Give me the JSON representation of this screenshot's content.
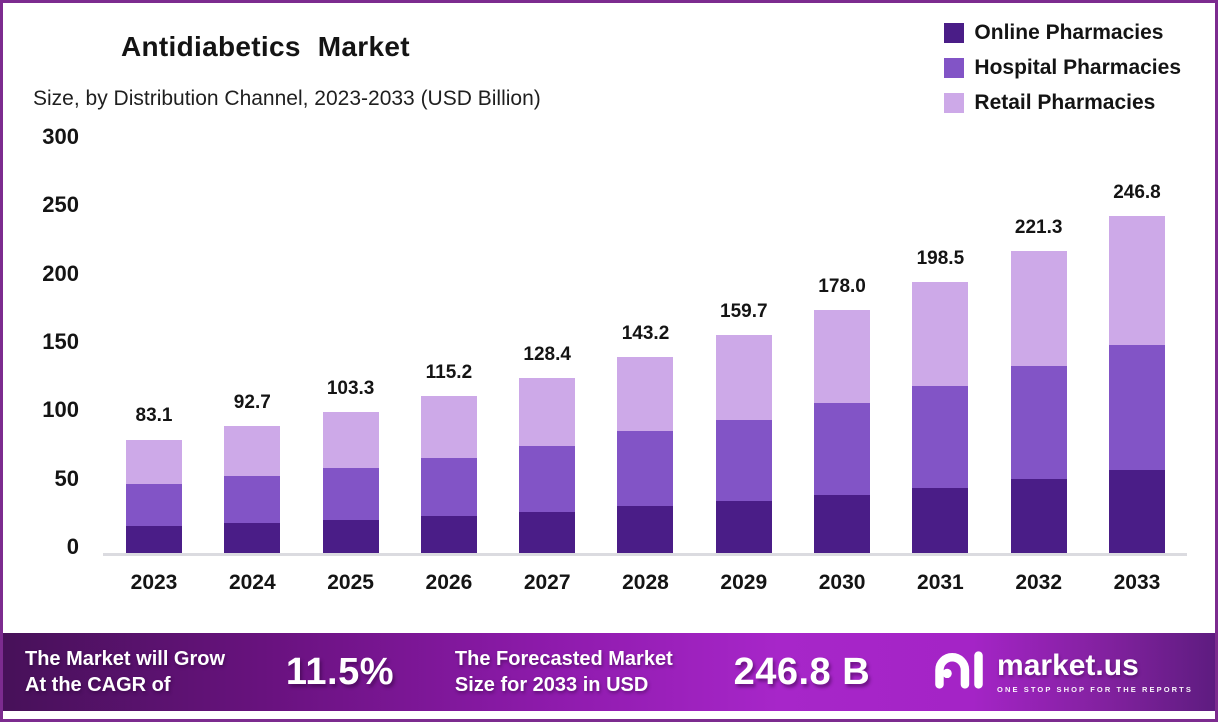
{
  "chart_data": {
    "type": "bar",
    "stacked": true,
    "title": "Antidiabetics Market",
    "subtitle": "Size, by Distribution Channel, 2023-2033 (USD Billion)",
    "categories": [
      "2023",
      "2024",
      "2025",
      "2026",
      "2027",
      "2028",
      "2029",
      "2030",
      "2031",
      "2032",
      "2033"
    ],
    "series": [
      {
        "name": "Online Pharmacies",
        "color": "#4A1D87",
        "values": [
          20.0,
          22.3,
          24.5,
          27.3,
          29.7,
          34.4,
          38.1,
          42.5,
          47.9,
          54.0,
          60.5
        ]
      },
      {
        "name": "Hospital Pharmacies",
        "color": "#8254C6",
        "values": [
          30.6,
          33.7,
          37.6,
          42.5,
          48.6,
          54.8,
          59.4,
          67.3,
          74.4,
          83.1,
          92.0
        ]
      },
      {
        "name": "Retail Pharmacies",
        "color": "#CDA9E8",
        "values": [
          32.5,
          36.7,
          41.2,
          45.4,
          50.1,
          54.0,
          62.2,
          68.2,
          76.2,
          84.2,
          94.3
        ]
      }
    ],
    "totals": [
      "83.1",
      "92.7",
      "103.3",
      "115.2",
      "128.4",
      "143.2",
      "159.7",
      "178.0",
      "198.5",
      "221.3",
      "246.8"
    ],
    "yticks": [
      0,
      50,
      100,
      150,
      200,
      250,
      300
    ],
    "ylim": [
      0,
      300
    ],
    "xlabel": "",
    "ylabel": "",
    "legend_position": "top-right",
    "grid": false
  },
  "banner": {
    "cagr_label_line1": "The Market will Grow",
    "cagr_label_line2": "At the CAGR of",
    "cagr_value": "11.5%",
    "forecast_label_line1": "The Forecasted Market",
    "forecast_label_line2": "Size for 2033 in USD",
    "forecast_value": "246.8 B",
    "logo": {
      "name": "market.us",
      "tagline": "ONE STOP SHOP FOR THE REPORTS"
    }
  },
  "colors": {
    "frame_border": "#7C2B8F",
    "axis_line": "#DBDBE0",
    "text": "#141414"
  }
}
